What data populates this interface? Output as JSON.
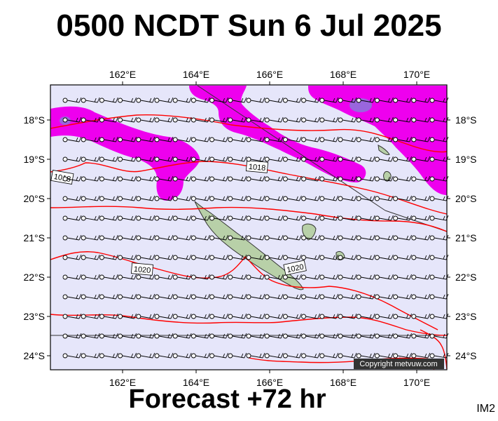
{
  "header": {
    "title": "0500 NCDT Sun 6 Jul 2025"
  },
  "footer": {
    "forecast_label": "Forecast +72 hr",
    "image_code": "IM2"
  },
  "map": {
    "copyright": "Copyright metvuw.com",
    "lon_ticks": [
      "162°E",
      "164°E",
      "166°E",
      "168°E",
      "170°E"
    ],
    "lat_ticks": [
      "18°S",
      "19°S",
      "20°S",
      "21°S",
      "22°S",
      "23°S",
      "24°S"
    ],
    "isobar_labels": [
      "1018",
      "1018",
      "1020",
      "1020"
    ],
    "colors": {
      "background": "#e6e6fa",
      "rain": "#ee00ee",
      "rain_heavy": "#9966dd",
      "isobar": "#ff0000",
      "land": "#b8d0a8",
      "border_line": "#000000"
    }
  }
}
